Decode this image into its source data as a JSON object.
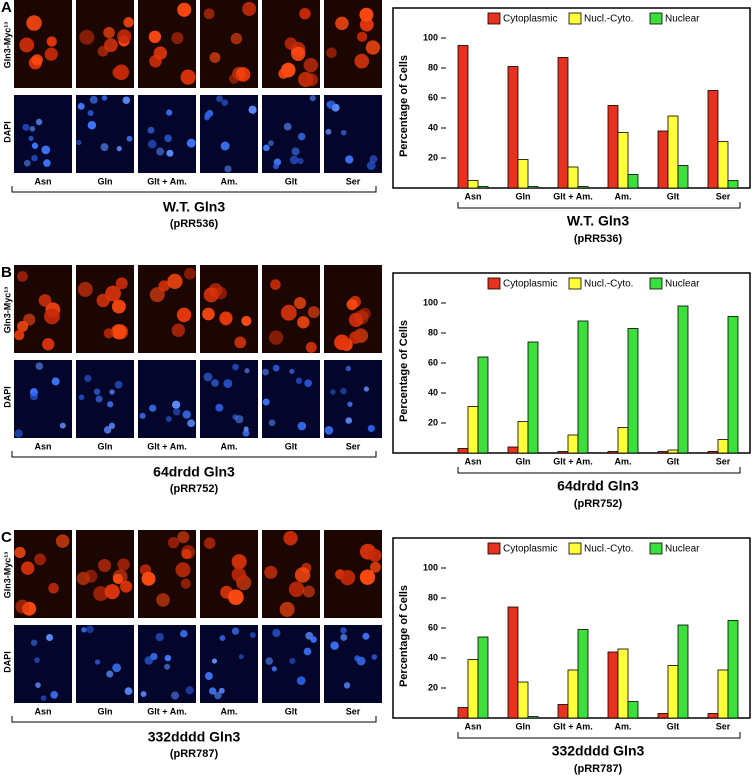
{
  "panel_letters": [
    "A",
    "B",
    "C"
  ],
  "image_rows": [
    "Gln3-Myc¹³",
    "DAPI"
  ],
  "chart_data": [
    {
      "type": "bar",
      "y_label": "Percentage of Cells",
      "x_label": "W.T. Gln3",
      "x_sublabel": "(pRR536)",
      "categories": [
        "Asn",
        "Gln",
        "Glt + Am.",
        "Am.",
        "Glt",
        "Ser"
      ],
      "series": [
        {
          "name": "Cytoplasmic",
          "color": "#e8321f",
          "values": [
            95,
            81,
            87,
            55,
            38,
            65
          ]
        },
        {
          "name": "Nucl.-Cyto.",
          "color": "#ffff3a",
          "values": [
            5,
            19,
            14,
            37,
            48,
            31
          ]
        },
        {
          "name": "Nuclear",
          "color": "#3ddf3d",
          "values": [
            1,
            1,
            1,
            9,
            15,
            5
          ]
        }
      ],
      "ylim": [
        0,
        120
      ],
      "yticks": [
        20,
        40,
        60,
        80,
        100
      ],
      "legend": "top"
    },
    {
      "type": "bar",
      "y_label": "Percentage of Cells",
      "x_label": "64drdd Gln3",
      "x_sublabel": "(pRR752)",
      "categories": [
        "Asn",
        "Gln",
        "Glt + Am.",
        "Am.",
        "Glt",
        "Ser"
      ],
      "series": [
        {
          "name": "Cytoplasmic",
          "color": "#e8321f",
          "values": [
            3,
            4,
            1,
            1,
            1,
            1
          ]
        },
        {
          "name": "Nucl.-Cyto.",
          "color": "#ffff3a",
          "values": [
            31,
            21,
            12,
            17,
            2,
            9
          ]
        },
        {
          "name": "Nuclear",
          "color": "#3ddf3d",
          "values": [
            64,
            74,
            88,
            83,
            98,
            91
          ]
        }
      ],
      "ylim": [
        0,
        120
      ],
      "yticks": [
        20,
        40,
        60,
        80,
        100
      ],
      "legend": "top"
    },
    {
      "type": "bar",
      "y_label": "Percentage of Cells",
      "x_label": "332dddd Gln3",
      "x_sublabel": "(pRR787)",
      "categories": [
        "Asn",
        "Gln",
        "Glt + Am.",
        "Am.",
        "Glt",
        "Ser"
      ],
      "series": [
        {
          "name": "Cytoplasmic",
          "color": "#e8321f",
          "values": [
            7,
            74,
            9,
            44,
            3,
            3
          ]
        },
        {
          "name": "Nucl.-Cyto.",
          "color": "#ffff3a",
          "values": [
            39,
            24,
            32,
            46,
            35,
            32
          ]
        },
        {
          "name": "Nuclear",
          "color": "#3ddf3d",
          "values": [
            54,
            1,
            59,
            11,
            62,
            65
          ]
        }
      ],
      "ylim": [
        0,
        120
      ],
      "yticks": [
        20,
        40,
        60,
        80,
        100
      ],
      "legend": "top"
    }
  ]
}
